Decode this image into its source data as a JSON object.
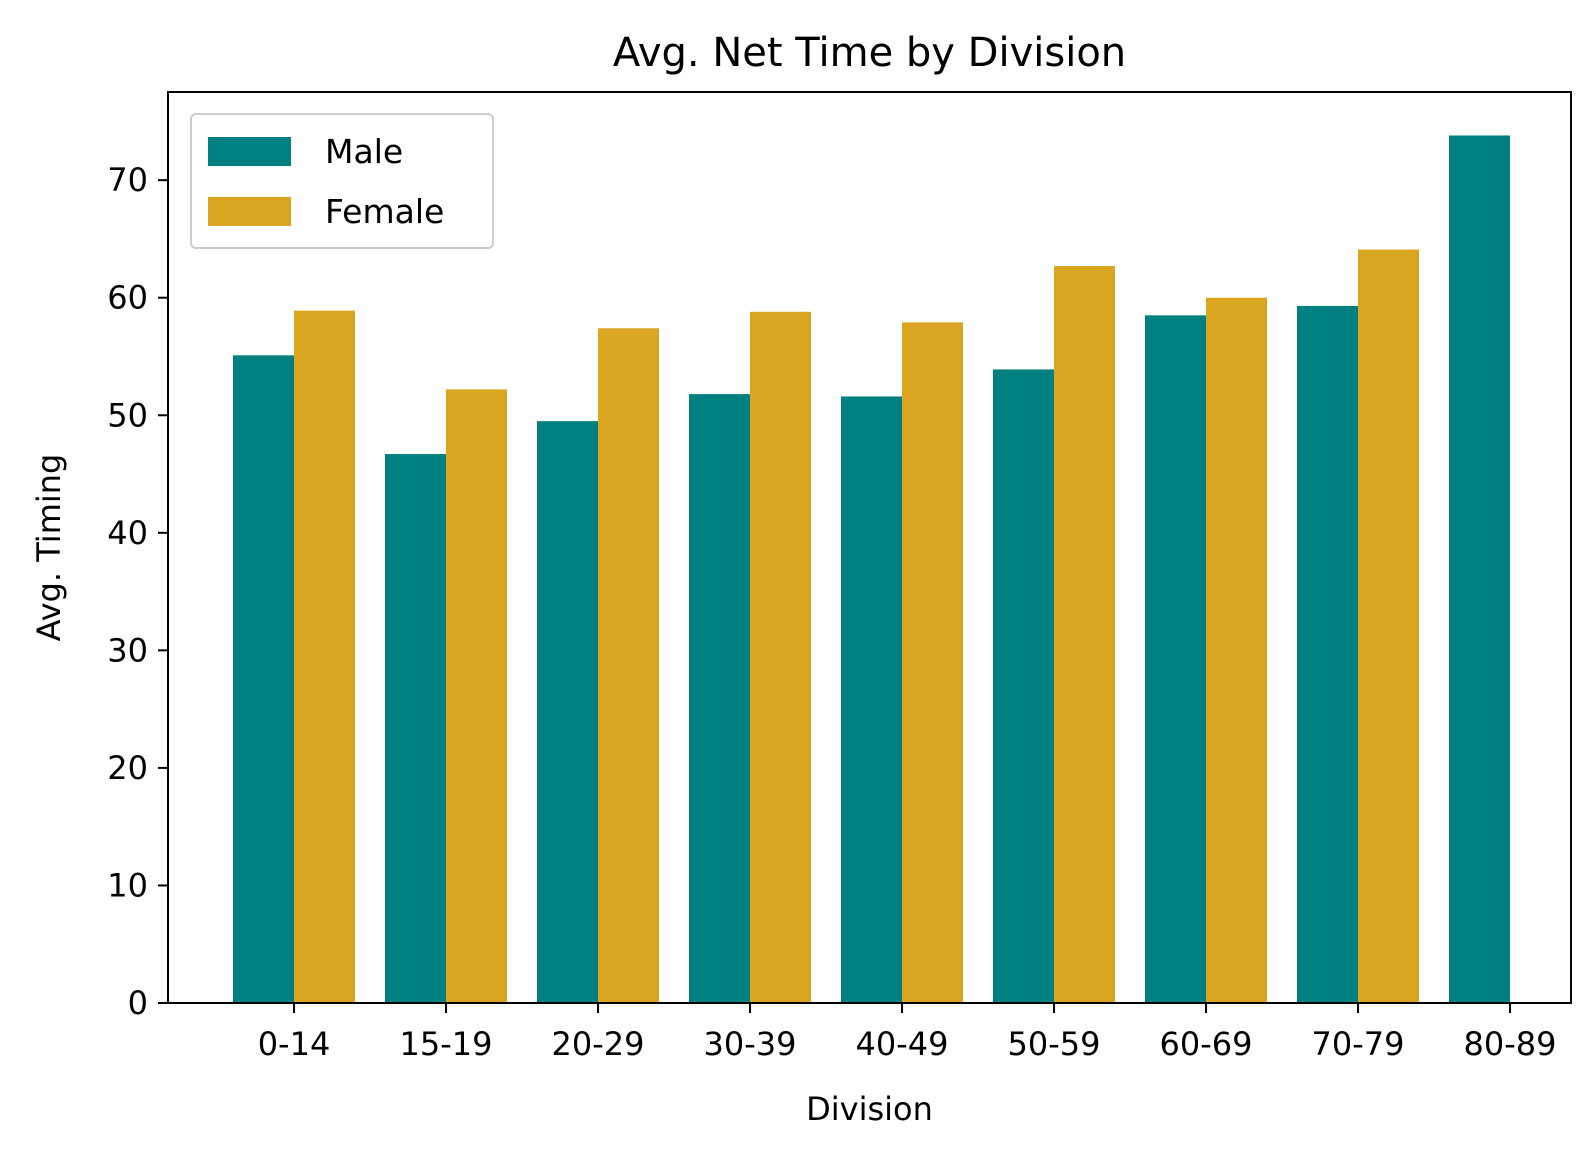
{
  "chart_data": {
    "type": "bar",
    "title": "Avg. Net Time by Division",
    "xlabel": "Division",
    "ylabel": "Avg. Timing",
    "categories": [
      "0-14",
      "15-19",
      "20-29",
      "30-39",
      "40-49",
      "50-59",
      "60-69",
      "70-79",
      "80-89"
    ],
    "series": [
      {
        "name": "Male",
        "color": "#008080",
        "values": [
          55.1,
          46.7,
          49.5,
          51.8,
          51.6,
          53.9,
          58.5,
          59.3,
          73.8
        ]
      },
      {
        "name": "Female",
        "color": "#DAA520",
        "values": [
          58.9,
          52.2,
          57.4,
          58.8,
          57.9,
          62.7,
          60.0,
          64.1,
          null
        ]
      }
    ],
    "ylim": [
      0,
      77.5
    ],
    "yticks": [
      0,
      10,
      20,
      30,
      40,
      50,
      60,
      70
    ],
    "grid": false,
    "legend": "top-left"
  }
}
